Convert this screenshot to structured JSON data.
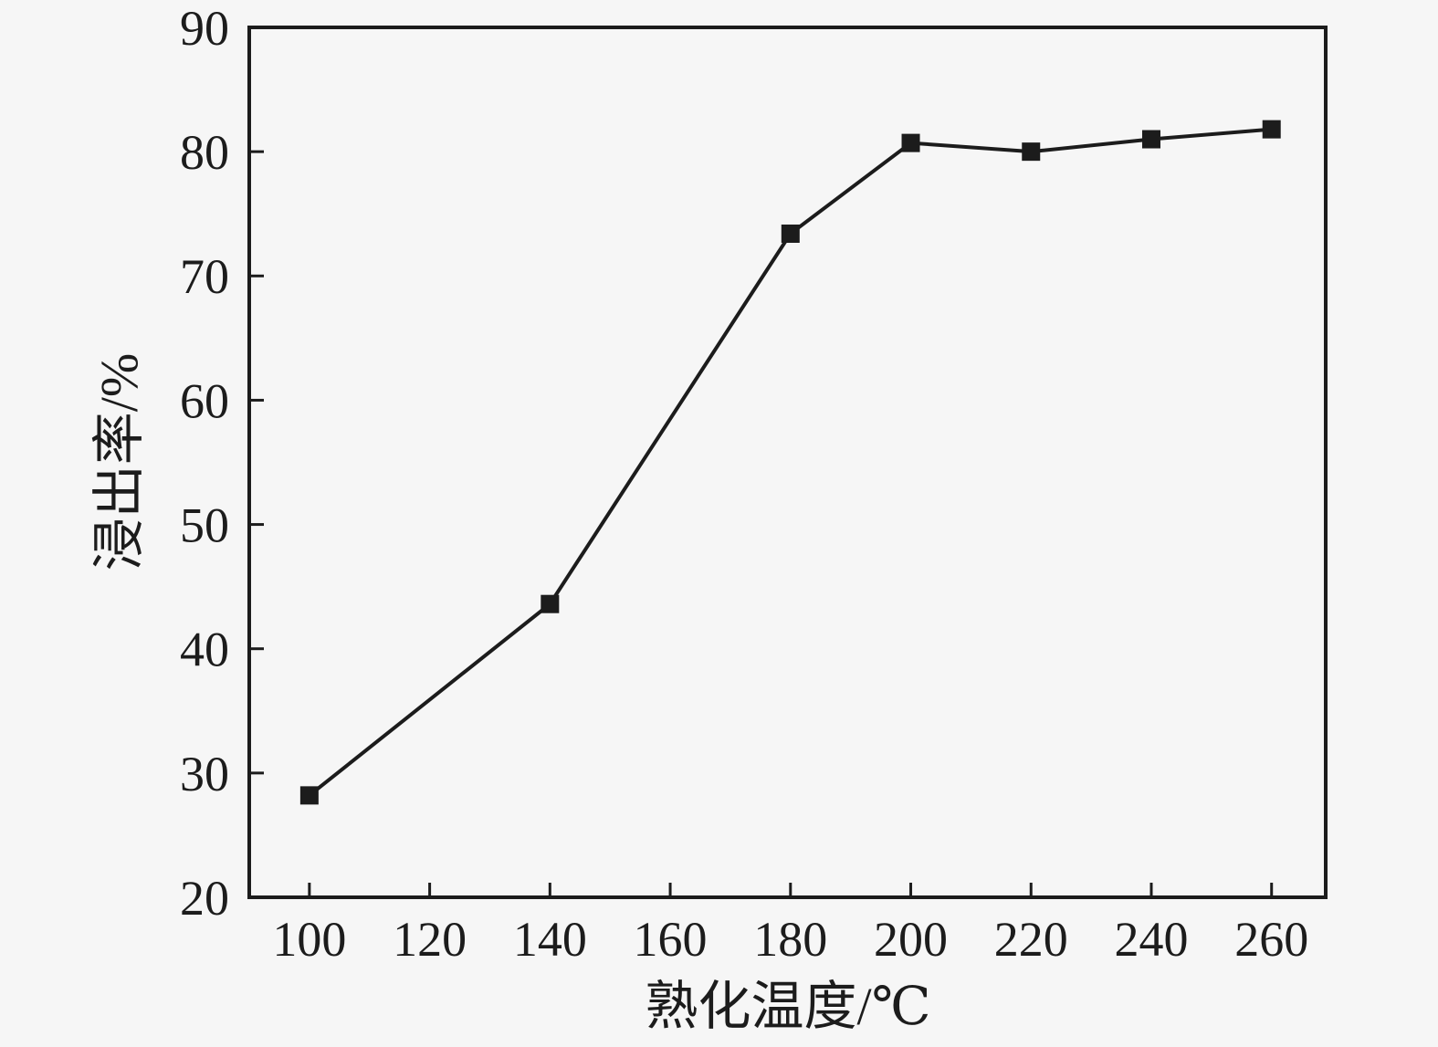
{
  "figure": {
    "background": "#f6f6f6",
    "ink_color": "#1c1c1c"
  },
  "chart_data": {
    "type": "line",
    "title": "",
    "xlabel": "熟化温度/℃",
    "ylabel": "浸出率/%",
    "series": [
      {
        "name": "浸出率",
        "x": [
          100,
          140,
          180,
          200,
          220,
          240,
          260
        ],
        "y": [
          28.2,
          43.6,
          73.4,
          80.7,
          80.0,
          81.0,
          81.8
        ],
        "marker": "filled-square",
        "color": "#1c1c1c"
      }
    ],
    "xlim": [
      90,
      269
    ],
    "ylim": [
      20,
      90
    ],
    "xticks": [
      100,
      120,
      140,
      160,
      180,
      200,
      220,
      240,
      260
    ],
    "yticks": [
      20,
      30,
      40,
      50,
      60,
      70,
      80,
      90
    ],
    "grid": false,
    "legend": "none",
    "frame": "box",
    "tick_direction": "in"
  }
}
